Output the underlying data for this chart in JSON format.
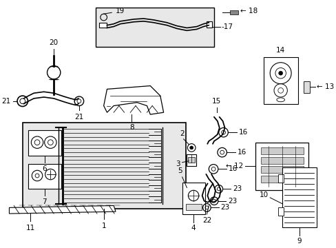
{
  "bg_color": "#ffffff",
  "line_color": "#000000",
  "gray_fill": "#e8e8e8",
  "label_fontsize": 7.5
}
